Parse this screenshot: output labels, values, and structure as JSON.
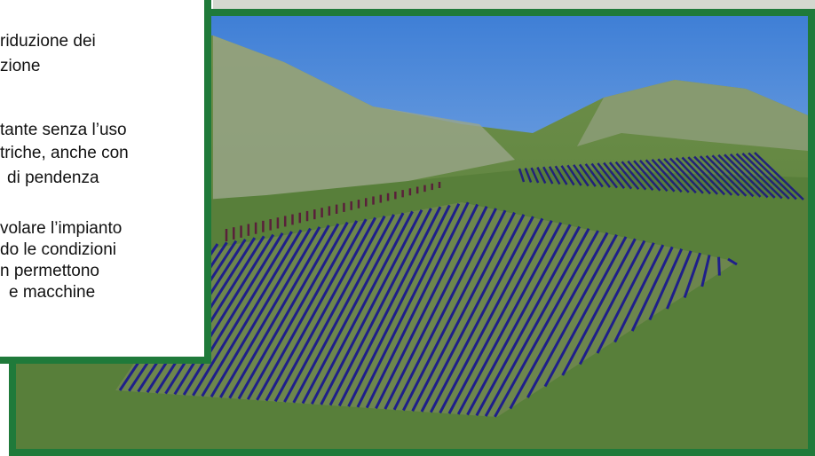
{
  "text_box": {
    "lines": [
      "riduzione dei",
      "zione",
      "tante senza l’uso",
      "triche, anche con",
      "di pendenza",
      "volare l’impianto",
      "do le condizioni",
      "n permettono",
      "e macchine"
    ]
  }
}
